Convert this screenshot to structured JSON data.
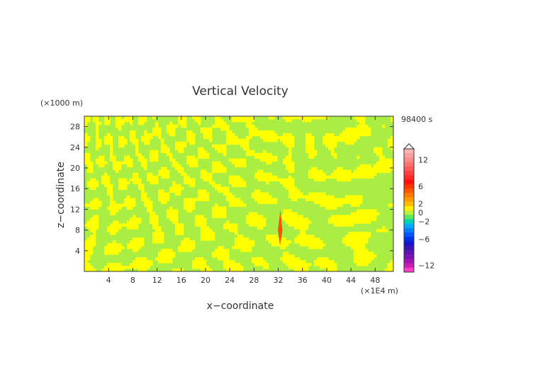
{
  "chart_data": {
    "type": "heatmap",
    "title": "Vertical Velocity",
    "xlabel": "x−coordinate",
    "ylabel": "z−coordinate",
    "x_unit": "(×1E4 m)",
    "y_unit": "(×1000 m)",
    "time_label": "98400 s",
    "xlim": [
      0,
      51
    ],
    "ylim": [
      0,
      30
    ],
    "x_ticks": [
      4,
      8,
      12,
      16,
      20,
      24,
      28,
      32,
      36,
      40,
      44,
      48
    ],
    "y_ticks": [
      4,
      8,
      12,
      16,
      20,
      24,
      28
    ],
    "colorbar": {
      "ticks": [
        12,
        6,
        2,
        0,
        -2,
        -6,
        -12
      ],
      "levels": [
        {
          "v": 14,
          "color": "#ffb4b4"
        },
        {
          "v": 13,
          "color": "#ff9f9f"
        },
        {
          "v": 12,
          "color": "#ff8a8a"
        },
        {
          "v": 11,
          "color": "#ff7070"
        },
        {
          "v": 10,
          "color": "#ff5a5a"
        },
        {
          "v": 9,
          "color": "#ff4040"
        },
        {
          "v": 8,
          "color": "#ff2a2a"
        },
        {
          "v": 7,
          "color": "#ff1010"
        },
        {
          "v": 6,
          "color": "#ff3300"
        },
        {
          "v": 5,
          "color": "#ff5500"
        },
        {
          "v": 4,
          "color": "#ff7700"
        },
        {
          "v": 3,
          "color": "#ff9900"
        },
        {
          "v": 2,
          "color": "#ffbb00"
        },
        {
          "v": 1,
          "color": "#ffee00"
        },
        {
          "v": 0,
          "color": "#b8f03c"
        },
        {
          "v": -1,
          "color": "#5ee65e"
        },
        {
          "v": -2,
          "color": "#00d2b4"
        },
        {
          "v": -3,
          "color": "#00aaff"
        },
        {
          "v": -4,
          "color": "#0080ff"
        },
        {
          "v": -5,
          "color": "#0055ff"
        },
        {
          "v": -6,
          "color": "#0030e6"
        },
        {
          "v": -7,
          "color": "#1414c8"
        },
        {
          "v": -8,
          "color": "#3c14b4"
        },
        {
          "v": -9,
          "color": "#5a14b4"
        },
        {
          "v": -10,
          "color": "#7814b4"
        },
        {
          "v": -11,
          "color": "#a014b4"
        },
        {
          "v": -12,
          "color": "#c81eb4"
        },
        {
          "v": -13,
          "color": "#ff3cc8"
        }
      ]
    },
    "grid": false,
    "field_description_colors": {
      "dominant_positive": "#ffff00",
      "dominant_negative": "#aaee44",
      "strong_updraft": "#ff4000"
    }
  }
}
